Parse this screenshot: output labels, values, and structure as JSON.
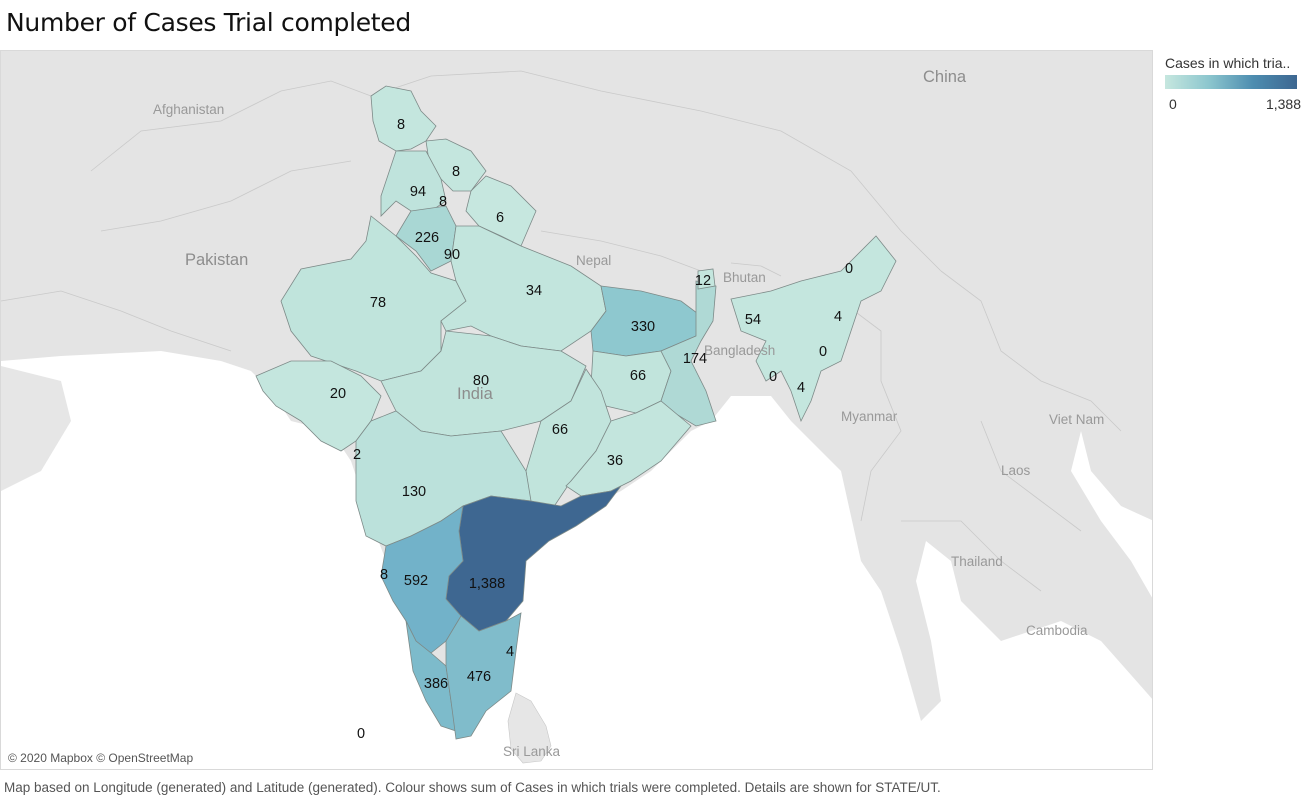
{
  "title": "Number of Cases Trial completed",
  "legend": {
    "title": "Cases in which tria..",
    "min_label": "0",
    "max_label": "1,388",
    "color_low": "#c6e7df",
    "color_high": "#3d6791"
  },
  "map": {
    "credit": "© 2020 Mapbox © OpenStreetMap",
    "countries": [
      "China",
      "Afghanistan",
      "Pakistan",
      "Nepal",
      "Bhutan",
      "Bangladesh",
      "India",
      "Myanmar",
      "Viet Nam",
      "Laos",
      "Thailand",
      "Cambodia",
      "Sri Lanka"
    ],
    "states": [
      {
        "name": "Jammu & Kashmir",
        "value": 8,
        "label": "8"
      },
      {
        "name": "Himachal Pradesh",
        "value": 8,
        "label": "8"
      },
      {
        "name": "Punjab",
        "value": 94,
        "label": "94"
      },
      {
        "name": "Chandigarh",
        "value": 8,
        "label": "8"
      },
      {
        "name": "Uttarakhand",
        "value": 6,
        "label": "6"
      },
      {
        "name": "Haryana",
        "value": 226,
        "label": "226"
      },
      {
        "name": "Delhi",
        "value": 90,
        "label": "90"
      },
      {
        "name": "Rajasthan",
        "value": 78,
        "label": "78"
      },
      {
        "name": "Uttar Pradesh",
        "value": 34,
        "label": "34"
      },
      {
        "name": "Bihar",
        "value": 330,
        "label": "330"
      },
      {
        "name": "Sikkim",
        "value": 12,
        "label": "12"
      },
      {
        "name": "Arunachal Pradesh",
        "value": 0,
        "label": "0"
      },
      {
        "name": "Meghalaya",
        "value": 54,
        "label": "54"
      },
      {
        "name": "Nagaland",
        "value": 4,
        "label": "4"
      },
      {
        "name": "Manipur",
        "value": 0,
        "label": "0"
      },
      {
        "name": "Tripura",
        "value": 0,
        "label": "0"
      },
      {
        "name": "Mizoram",
        "value": 4,
        "label": "4"
      },
      {
        "name": "West Bengal",
        "value": 174,
        "label": "174"
      },
      {
        "name": "Jharkhand",
        "value": 66,
        "label": "66"
      },
      {
        "name": "Gujarat",
        "value": 20,
        "label": "20"
      },
      {
        "name": "Madhya Pradesh",
        "value": 80,
        "label": "80"
      },
      {
        "name": "Chhattisgarh",
        "value": 66,
        "label": "66"
      },
      {
        "name": "Odisha",
        "value": 36,
        "label": "36"
      },
      {
        "name": "Daman & Diu",
        "value": 2,
        "label": "2"
      },
      {
        "name": "Maharashtra",
        "value": 130,
        "label": "130"
      },
      {
        "name": "Goa",
        "value": 8,
        "label": "8"
      },
      {
        "name": "Karnataka",
        "value": 592,
        "label": "592"
      },
      {
        "name": "Andhra Pradesh",
        "value": 1388,
        "label": "1,388"
      },
      {
        "name": "Puducherry",
        "value": 4,
        "label": "4"
      },
      {
        "name": "Kerala",
        "value": 386,
        "label": "386"
      },
      {
        "name": "Tamil Nadu",
        "value": 476,
        "label": "476"
      },
      {
        "name": "Lakshadweep",
        "value": 0,
        "label": "0"
      }
    ]
  },
  "caption": "Map based on Longitude (generated) and Latitude (generated).  Colour shows sum of Cases in which trials were completed.  Details are shown for STATE/UT."
}
